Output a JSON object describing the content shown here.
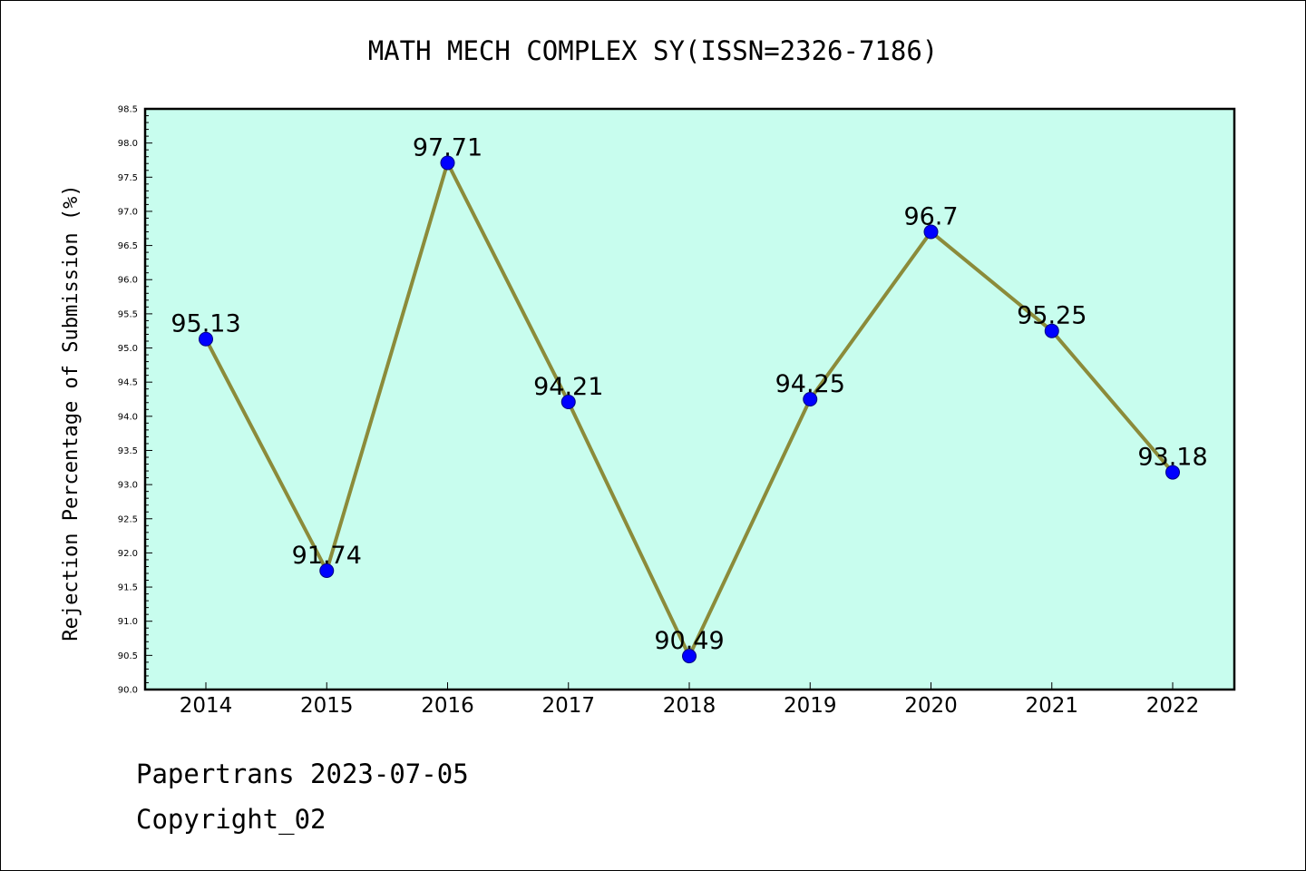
{
  "chart_data": {
    "type": "line",
    "title": "MATH MECH COMPLEX SY(ISSN=2326-7186)",
    "ylabel": "Rejection Percentage of Submission (%)",
    "xlabel": "",
    "categories": [
      "2014",
      "2015",
      "2016",
      "2017",
      "2018",
      "2019",
      "2020",
      "2021",
      "2022"
    ],
    "values": [
      95.13,
      91.74,
      97.71,
      94.21,
      90.49,
      94.25,
      96.7,
      95.25,
      93.18
    ],
    "data_labels": [
      "95.13",
      "91.74",
      "97.71",
      "94.21",
      "90.49",
      "94.25",
      "96.7",
      "95.25",
      "93.18"
    ],
    "ylim": [
      90.0,
      98.5
    ],
    "yticks": [
      "90.0",
      "90.5",
      "91.0",
      "91.5",
      "92.0",
      "92.5",
      "93.0",
      "93.5",
      "94.0",
      "94.5",
      "95.0",
      "95.5",
      "96.0",
      "96.5",
      "97.0",
      "97.5",
      "98.0",
      "98.5"
    ],
    "grid": false,
    "colors": {
      "plot_background": "#c8fdee",
      "line": "#8b8b3a",
      "marker": "#0000ff",
      "marker_edge": "#000080"
    }
  },
  "footer": {
    "line1": "Papertrans 2023-07-05",
    "line2": "Copyright_02"
  }
}
